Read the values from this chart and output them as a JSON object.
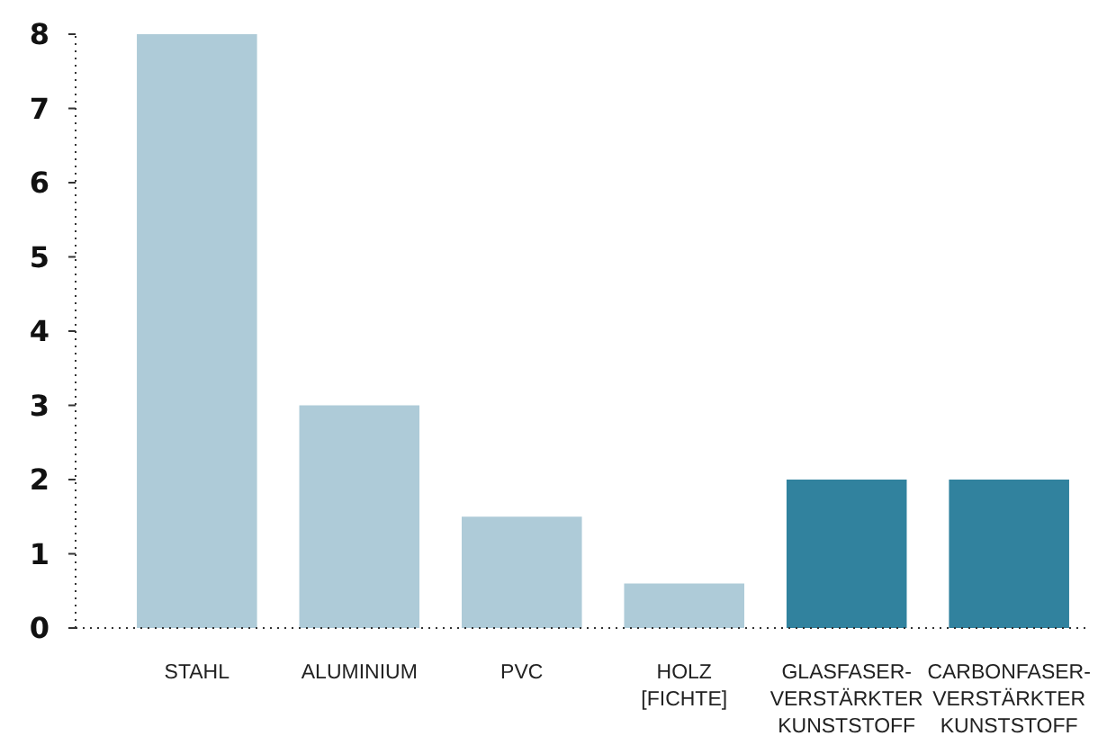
{
  "chart_data": {
    "type": "bar",
    "categories": [
      "STAHL",
      "ALUMINIUM",
      "PVC",
      "HOLZ\n[FICHTE]",
      "GLASFASER-\nVERSTÄRKTER\nKUNSTSTOFF",
      "CARBONFASER-\nVERSTÄRKTER\nKUNSTSTOFF"
    ],
    "values": [
      8,
      3,
      1.5,
      0.6,
      2,
      2
    ],
    "colors": [
      "#aecbd8",
      "#aecbd8",
      "#aecbd8",
      "#aecbd8",
      "#31829e",
      "#31829e"
    ],
    "ylim": [
      0,
      8
    ],
    "yticks": [
      0,
      1,
      2,
      3,
      4,
      5,
      6,
      7,
      8
    ]
  }
}
